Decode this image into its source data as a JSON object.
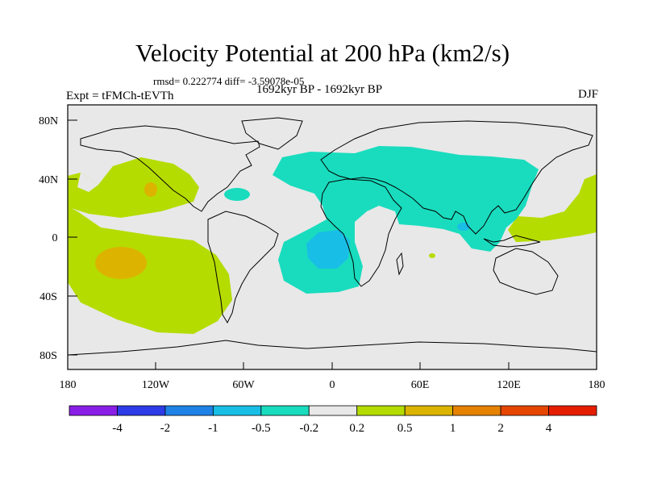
{
  "title": "Velocity Potential at 200 hPa (km2/s)",
  "stats_line": "rmsd= 0.222774 diff= -3.59078e-05",
  "left_label": "Expt = tFMCh-tEVTh",
  "center_label": "1692kyr BP - 1692kyr BP",
  "right_label": "DJF",
  "lat_ticks": [
    "80N",
    "40N",
    "0",
    "40S",
    "80S"
  ],
  "lon_ticks": [
    "180",
    "120W",
    "60W",
    "0",
    "60E",
    "120E",
    "180"
  ],
  "colorbar": {
    "labels": [
      "-4",
      "-2",
      "-1",
      "-0.5",
      "-0.2",
      "0.2",
      "0.5",
      "1",
      "2",
      "4"
    ],
    "colors": [
      "#8a1ee6",
      "#2d3ce6",
      "#1e82e6",
      "#19bee6",
      "#19dcbe",
      "#e8e8e8",
      "#b4dc00",
      "#dcb400",
      "#e68200",
      "#e64600",
      "#e61e00"
    ]
  },
  "colors": {
    "neutral": "#e8e8e8",
    "pos_weak": "#b4dc00",
    "pos_mid": "#dcb400",
    "neg_weak": "#19dcbe",
    "neg_mid": "#19bee6"
  }
}
